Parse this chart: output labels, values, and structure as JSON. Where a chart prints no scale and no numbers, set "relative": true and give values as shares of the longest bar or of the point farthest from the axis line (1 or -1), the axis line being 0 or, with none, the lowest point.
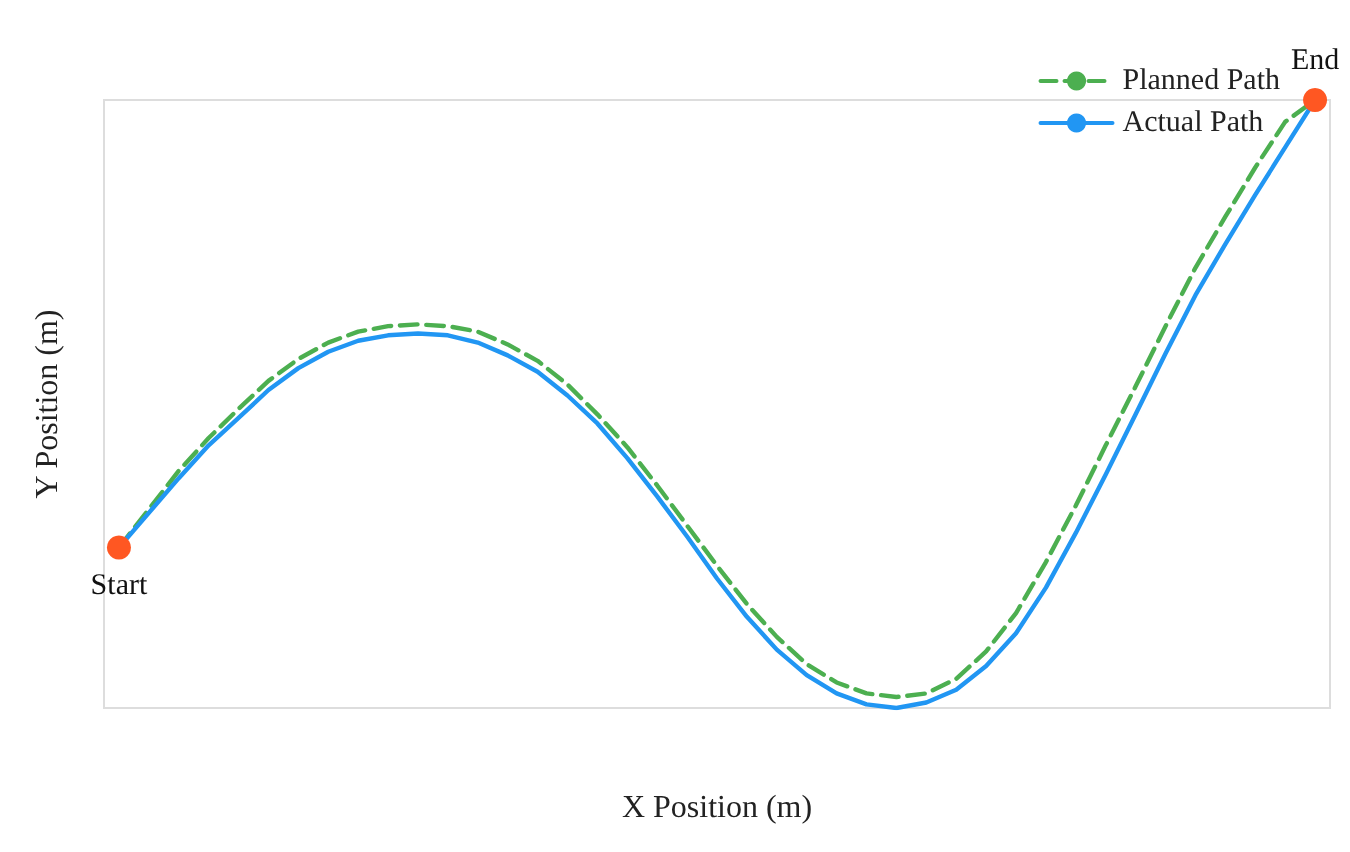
{
  "chart_data": {
    "type": "line",
    "relative": true,
    "xlabel": "X Position (m)",
    "ylabel": "Y Position (m)",
    "legend": "top right",
    "grid": false,
    "marker": "none",
    "categories": [
      null,
      null,
      null,
      null,
      null,
      null,
      null,
      null,
      null,
      null,
      null,
      null,
      null,
      null,
      null,
      null,
      null,
      null,
      null,
      null,
      null,
      null,
      null,
      null,
      null,
      null,
      null,
      null,
      null,
      null,
      null,
      null,
      null,
      null,
      null,
      null,
      null,
      null,
      null,
      null,
      null
    ],
    "annotations": [
      {
        "text": "Start",
        "y": 0.264
      },
      {
        "text": "End",
        "y": 1
      }
    ],
    "series": [
      {
        "name": "Planned Path",
        "color": "#4caf50",
        "line_style": "dashed",
        "values": [
          0.264,
          0.327,
          0.39,
          0.444,
          0.492,
          0.538,
          0.574,
          0.601,
          0.619,
          0.628,
          0.631,
          0.628,
          0.619,
          0.598,
          0.571,
          0.532,
          0.483,
          0.429,
          0.366,
          0.3,
          0.234,
          0.171,
          0.117,
          0.072,
          0.042,
          0.024,
          0.018,
          0.024,
          0.048,
          0.093,
          0.156,
          0.24,
          0.333,
          0.432,
          0.529,
          0.628,
          0.724,
          0.808,
          0.889,
          0.964,
          1
        ]
      },
      {
        "name": "Actual Path",
        "color": "#2196f3",
        "line_style": "solid",
        "values": [
          0.264,
          0.321,
          0.378,
          0.432,
          0.477,
          0.523,
          0.559,
          0.586,
          0.604,
          0.613,
          0.616,
          0.613,
          0.601,
          0.58,
          0.553,
          0.514,
          0.468,
          0.411,
          0.348,
          0.282,
          0.213,
          0.15,
          0.096,
          0.054,
          0.024,
          0.006,
          0,
          0.009,
          0.03,
          0.069,
          0.123,
          0.198,
          0.288,
          0.384,
          0.483,
          0.583,
          0.679,
          0.763,
          0.844,
          0.922,
          1
        ]
      }
    ]
  }
}
